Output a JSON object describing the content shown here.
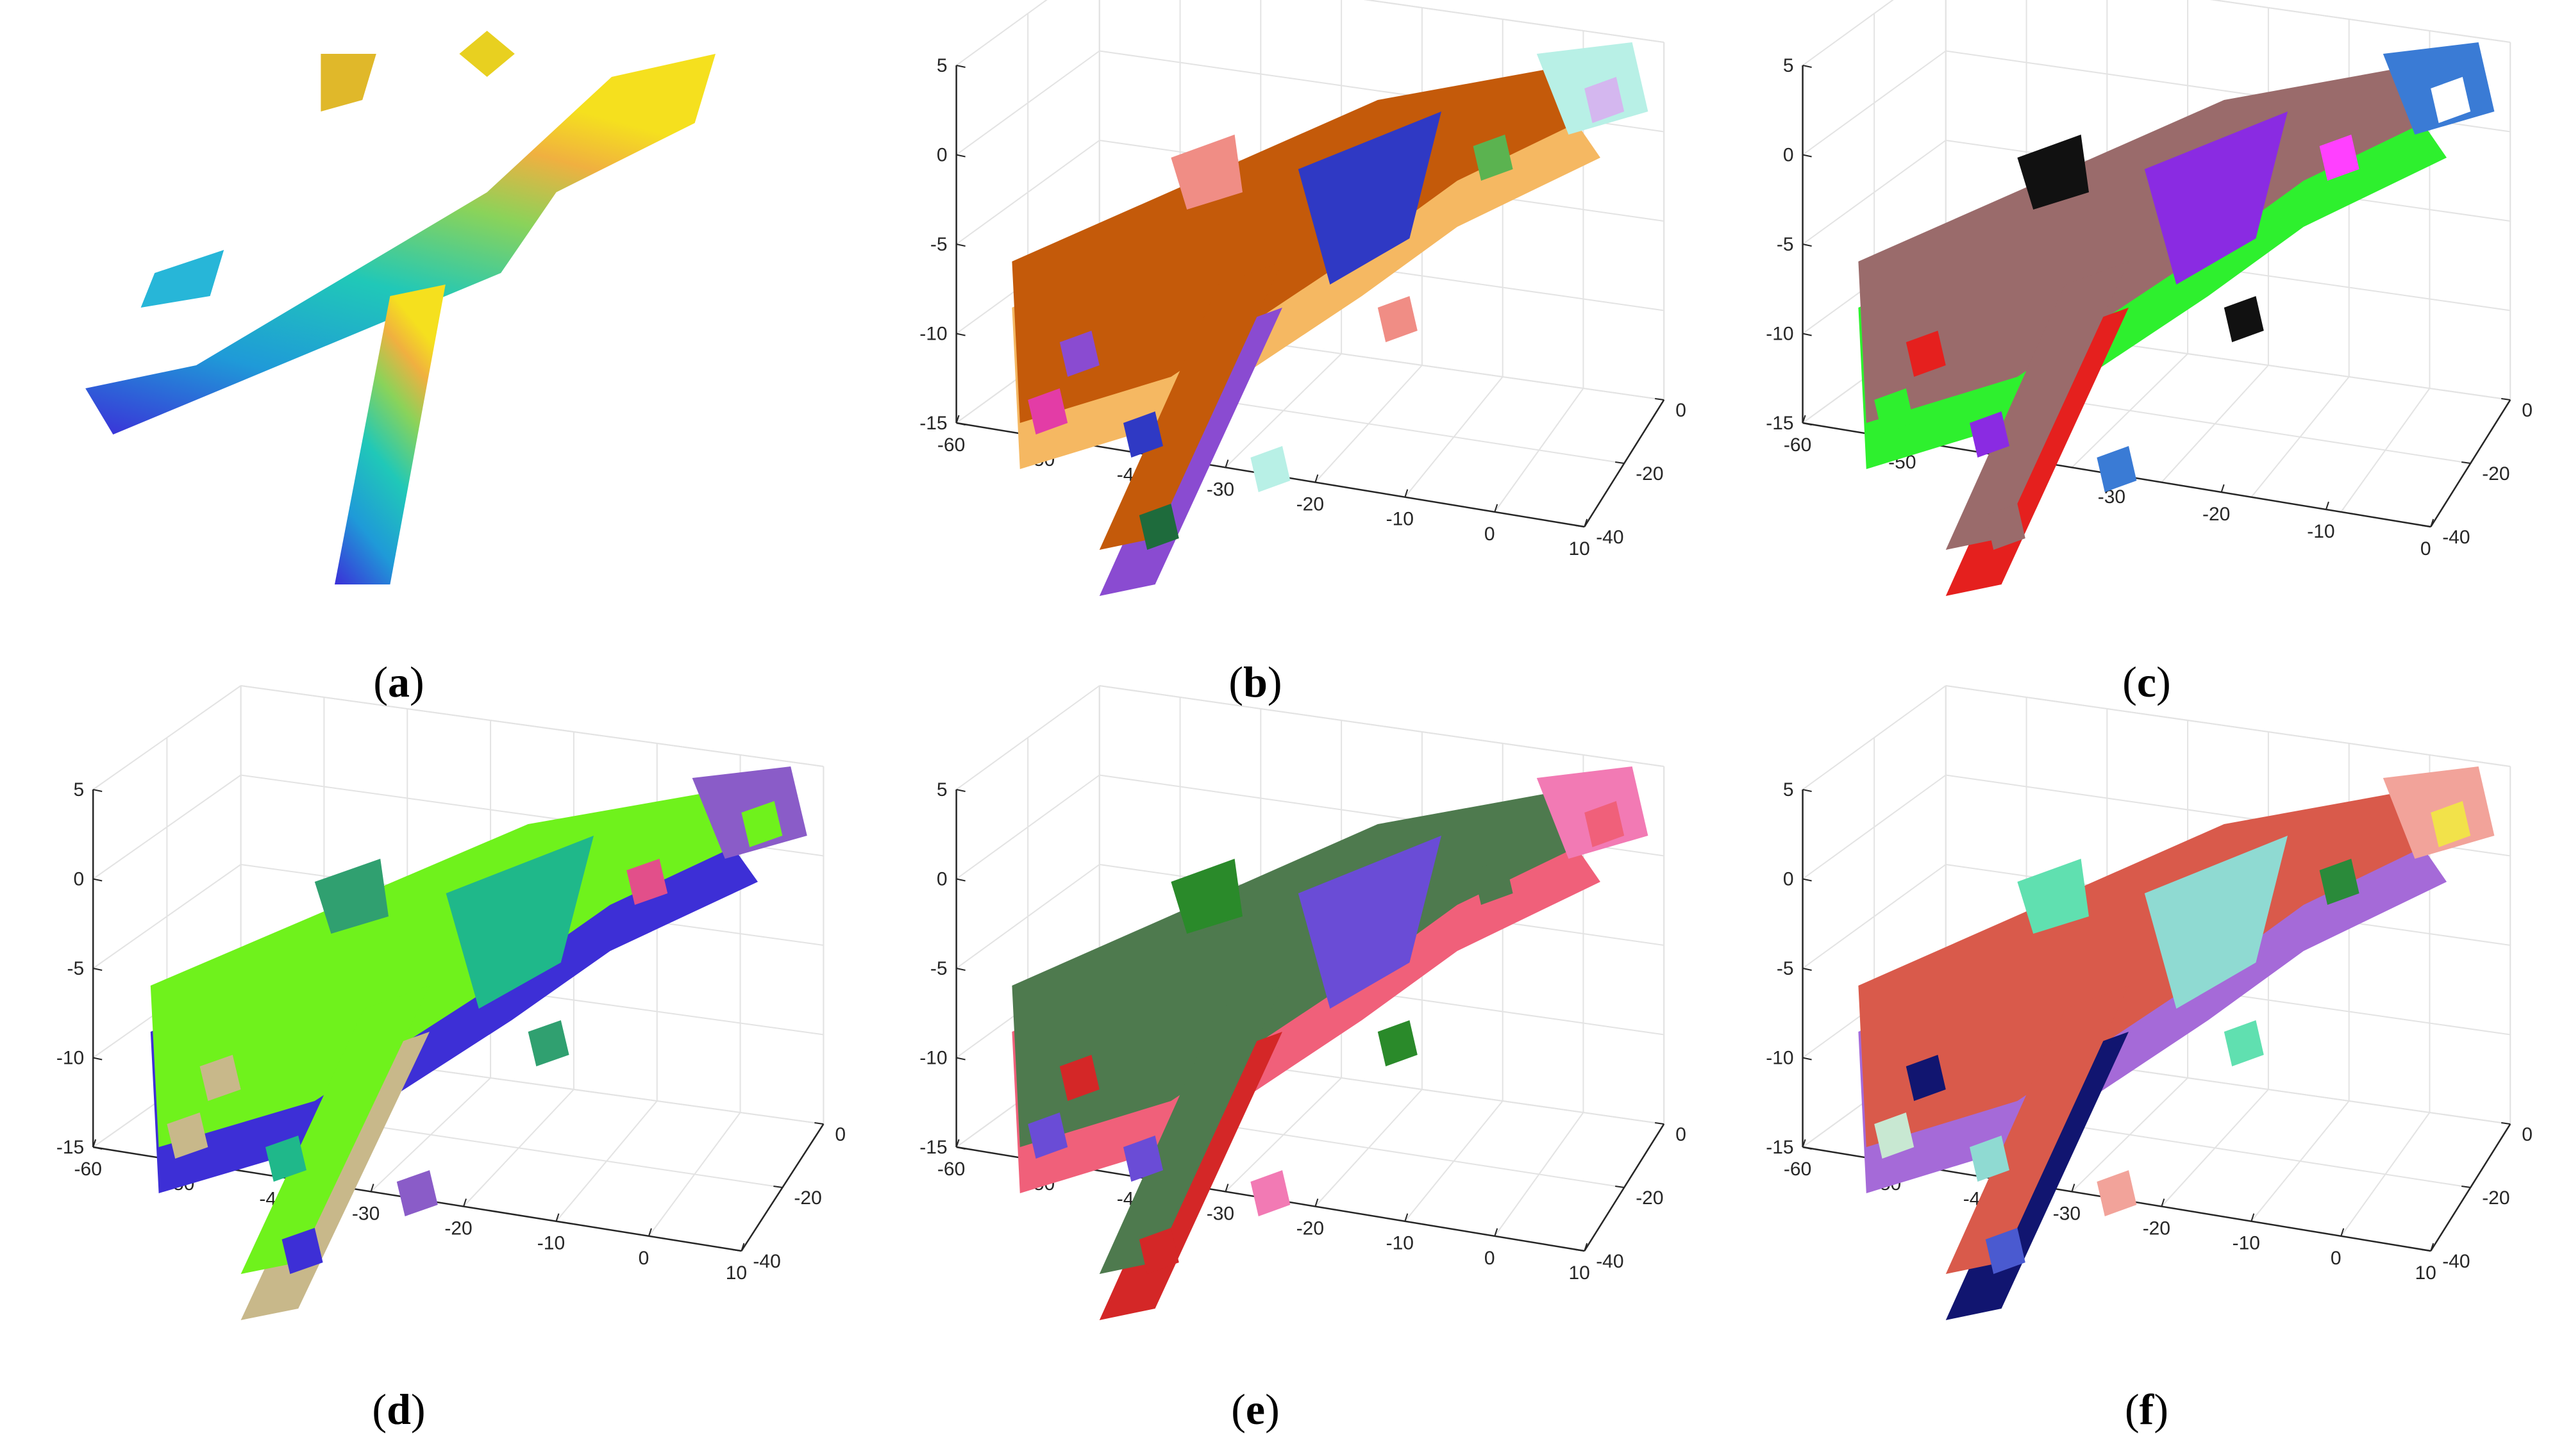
{
  "panels": [
    {
      "letter": "a",
      "axes": false,
      "scheme": "gradient"
    },
    {
      "letter": "b",
      "axes": true,
      "z_ticks": [
        "5",
        "0",
        "-5",
        "-10",
        "-15"
      ],
      "x_ticks": [
        "-60",
        "-50",
        "-40",
        "-30",
        "-20",
        "-10",
        "0",
        "10"
      ],
      "y_ticks": [
        "0",
        "-20",
        "-40"
      ],
      "palette": [
        "#c45a0a",
        "#f5b862",
        "#8a4bd1",
        "#2f39c4",
        "#b8f0e6",
        "#f08d85",
        "#5bb350",
        "#d4b7ef",
        "#1e6b3c",
        "#e33ca6"
      ]
    },
    {
      "letter": "c",
      "axes": true,
      "z_ticks": [
        "5",
        "0",
        "-5",
        "-10",
        "-15"
      ],
      "x_ticks": [
        "-60",
        "-50",
        "-40",
        "-30",
        "-20",
        "-10",
        "0"
      ],
      "y_ticks": [
        "0",
        "-20",
        "-40"
      ],
      "palette": [
        "#9a6b6b",
        "#2ef02e",
        "#e5201e",
        "#8a2be2",
        "#3a7bd5",
        "#111111",
        "#ff40ff",
        "#ffffff"
      ]
    },
    {
      "letter": "d",
      "axes": true,
      "z_ticks": [
        "5",
        "0",
        "-5",
        "-10",
        "-15"
      ],
      "x_ticks": [
        "-60",
        "-50",
        "-40",
        "-30",
        "-20",
        "-10",
        "0",
        "10"
      ],
      "y_ticks": [
        "0",
        "-20",
        "-40"
      ],
      "palette": [
        "#6ff21c",
        "#3d2fd6",
        "#c8b88a",
        "#1fb88a",
        "#8a5cc8",
        "#30a070",
        "#e24f8a"
      ]
    },
    {
      "letter": "e",
      "axes": true,
      "z_ticks": [
        "5",
        "0",
        "-5",
        "-10",
        "-15"
      ],
      "x_ticks": [
        "-60",
        "-50",
        "-40",
        "-30",
        "-20",
        "-10",
        "0",
        "10"
      ],
      "y_ticks": [
        "0",
        "-20",
        "-40"
      ],
      "palette": [
        "#4e7a4e",
        "#f0607a",
        "#d42727",
        "#6a4cd6",
        "#f27ab4",
        "#2a8a2a"
      ]
    },
    {
      "letter": "f",
      "axes": true,
      "z_ticks": [
        "5",
        "0",
        "-5",
        "-10",
        "-15"
      ],
      "x_ticks": [
        "-60",
        "-50",
        "-40",
        "-30",
        "-20",
        "-10",
        "0",
        "10"
      ],
      "y_ticks": [
        "0",
        "-20",
        "-40"
      ],
      "palette": [
        "#d95a4b",
        "#a56ad8",
        "#111570",
        "#8fdad2",
        "#f2a39a",
        "#60e0b0",
        "#2a8a3a",
        "#f2e24a",
        "#4a5ad0",
        "#c8e8d2"
      ]
    }
  ]
}
